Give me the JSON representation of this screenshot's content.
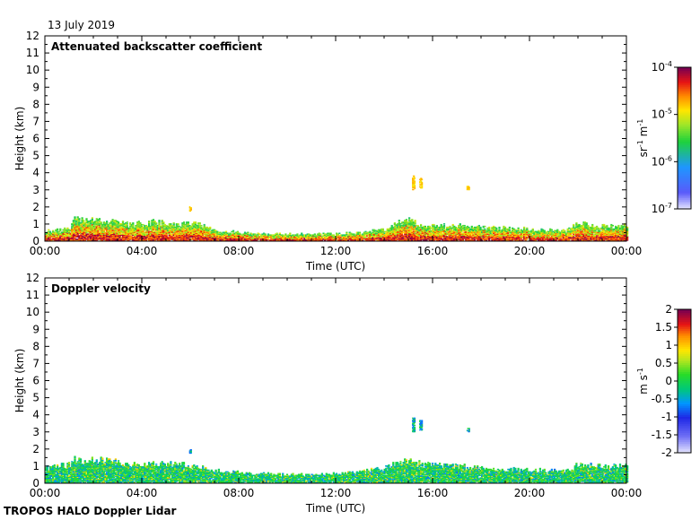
{
  "header": {
    "date": "13 July 2019"
  },
  "footer": {
    "label": "TROPOS HALO Doppler Lidar"
  },
  "chart_data": [
    {
      "type": "heatmap",
      "title": "Attenuated backscatter coefficient",
      "xlabel": "Time (UTC)",
      "ylabel": "Height (km)",
      "x_ticks": [
        "00:00",
        "04:00",
        "08:00",
        "12:00",
        "16:00",
        "20:00",
        "00:00"
      ],
      "xlim_hours": [
        0,
        24
      ],
      "y_ticks": [
        0,
        1,
        2,
        3,
        4,
        5,
        6,
        7,
        8,
        9,
        10,
        11,
        12
      ],
      "ylim_km": [
        0,
        12
      ],
      "colorbar": {
        "scale": "log",
        "range": [
          1e-07,
          0.0001
        ],
        "ticks": [
          {
            "base": "10",
            "exp": "-4",
            "value": 0.0001
          },
          {
            "base": "10",
            "exp": "-5",
            "value": 1e-05
          },
          {
            "base": "10",
            "exp": "-6",
            "value": 1e-06
          },
          {
            "base": "10",
            "exp": "-7",
            "value": 1e-07
          }
        ],
        "unit_parts": [
          {
            "b": "sr",
            "s": "-1"
          },
          {
            "b": " m",
            "s": "-1"
          }
        ]
      },
      "layer_top_km": [
        {
          "t": 0.0,
          "h": 0.55
        },
        {
          "t": 1.0,
          "h": 0.7
        },
        {
          "t": 1.2,
          "h": 1.3
        },
        {
          "t": 2.6,
          "h": 1.2
        },
        {
          "t": 3.4,
          "h": 1.0
        },
        {
          "t": 4.5,
          "h": 1.1
        },
        {
          "t": 6.3,
          "h": 1.0
        },
        {
          "t": 7.2,
          "h": 0.6
        },
        {
          "t": 8.5,
          "h": 0.45
        },
        {
          "t": 11.0,
          "h": 0.4
        },
        {
          "t": 12.5,
          "h": 0.45
        },
        {
          "t": 14.0,
          "h": 0.7
        },
        {
          "t": 14.9,
          "h": 1.3
        },
        {
          "t": 15.6,
          "h": 0.9
        },
        {
          "t": 17.0,
          "h": 0.9
        },
        {
          "t": 19.0,
          "h": 0.75
        },
        {
          "t": 21.5,
          "h": 0.6
        },
        {
          "t": 22.0,
          "h": 1.1
        },
        {
          "t": 22.6,
          "h": 0.9
        },
        {
          "t": 24.0,
          "h": 0.9
        }
      ],
      "patches": [
        {
          "t": [
            5.95,
            6.02
          ],
          "h": [
            1.75,
            2.0
          ]
        },
        {
          "t": [
            15.15,
            15.25
          ],
          "h": [
            3.0,
            3.8
          ]
        },
        {
          "t": [
            15.45,
            15.55
          ],
          "h": [
            3.1,
            3.7
          ]
        },
        {
          "t": [
            17.4,
            17.5
          ],
          "h": [
            3.0,
            3.2
          ]
        }
      ]
    },
    {
      "type": "heatmap",
      "title": "Doppler velocity",
      "xlabel": "Time (UTC)",
      "ylabel": "Height (km)",
      "x_ticks": [
        "00:00",
        "04:00",
        "08:00",
        "12:00",
        "16:00",
        "20:00",
        "00:00"
      ],
      "xlim_hours": [
        0,
        24
      ],
      "y_ticks": [
        0,
        1,
        2,
        3,
        4,
        5,
        6,
        7,
        8,
        9,
        10,
        11,
        12
      ],
      "ylim_km": [
        0,
        12
      ],
      "colorbar": {
        "scale": "linear",
        "range": [
          -2,
          2
        ],
        "ticks": [
          "2",
          "1.5",
          "1",
          "0.5",
          "0",
          "-0.5",
          "-1",
          "-1.5",
          "-2"
        ],
        "unit_parts": [
          {
            "b": "m s",
            "s": "-1"
          }
        ]
      },
      "layer_top_km": [
        {
          "t": 0.0,
          "h": 0.9
        },
        {
          "t": 1.0,
          "h": 1.1
        },
        {
          "t": 1.2,
          "h": 1.4
        },
        {
          "t": 2.6,
          "h": 1.3
        },
        {
          "t": 3.4,
          "h": 1.1
        },
        {
          "t": 4.5,
          "h": 1.2
        },
        {
          "t": 6.3,
          "h": 1.0
        },
        {
          "t": 7.2,
          "h": 0.7
        },
        {
          "t": 8.5,
          "h": 0.55
        },
        {
          "t": 11.0,
          "h": 0.5
        },
        {
          "t": 12.5,
          "h": 0.6
        },
        {
          "t": 14.0,
          "h": 0.9
        },
        {
          "t": 14.9,
          "h": 1.3
        },
        {
          "t": 15.6,
          "h": 1.1
        },
        {
          "t": 17.0,
          "h": 1.0
        },
        {
          "t": 19.0,
          "h": 0.8
        },
        {
          "t": 21.5,
          "h": 0.7
        },
        {
          "t": 22.0,
          "h": 1.1
        },
        {
          "t": 22.6,
          "h": 1.0
        },
        {
          "t": 24.0,
          "h": 1.0
        }
      ],
      "patches": [
        {
          "t": [
            5.95,
            6.02
          ],
          "h": [
            1.75,
            2.0
          ]
        },
        {
          "t": [
            15.15,
            15.25
          ],
          "h": [
            3.0,
            3.8
          ]
        },
        {
          "t": [
            15.45,
            15.55
          ],
          "h": [
            3.1,
            3.7
          ]
        },
        {
          "t": [
            17.4,
            17.5
          ],
          "h": [
            3.0,
            3.2
          ]
        }
      ]
    }
  ]
}
